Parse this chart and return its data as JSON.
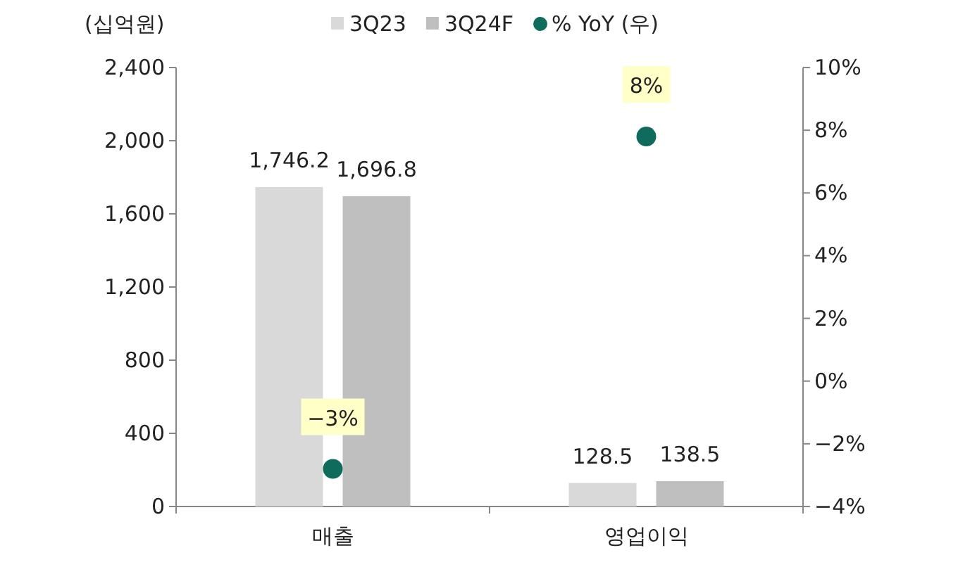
{
  "chart_data": {
    "type": "bar",
    "ylabel": "(십억원)",
    "categories": [
      "매출",
      "영업이익"
    ],
    "series": [
      {
        "name": "3Q23",
        "color": "#d9d9d9",
        "values": [
          1746.2,
          128.5
        ],
        "value_labels": [
          "1,746.2",
          "128.5"
        ]
      },
      {
        "name": "3Q24F",
        "color": "#bfbfbf",
        "values": [
          1696.8,
          138.5
        ],
        "value_labels": [
          "1,696.8",
          "138.5"
        ]
      },
      {
        "name": "% YoY (우)",
        "type": "scatter",
        "axis": "y2",
        "color": "#0f6b5c",
        "marker": "circle",
        "values": [
          -2.8,
          7.8
        ],
        "value_labels": [
          "−3%",
          "8%"
        ]
      }
    ],
    "ylim": [
      0,
      2400
    ],
    "yticks": [
      0,
      400,
      800,
      {
        "value": 1200,
        "label": "1,200"
      },
      {
        "value": 1600,
        "label": "1,600"
      },
      {
        "value": 2000,
        "label": "2,000"
      },
      {
        "value": 2400,
        "label": "2,400"
      }
    ],
    "y2lim": [
      -4,
      10
    ],
    "y2ticks": [
      {
        "value": -4,
        "label": "−4%"
      },
      {
        "value": -2,
        "label": "−2%"
      },
      {
        "value": 0,
        "label": "0%"
      },
      {
        "value": 2,
        "label": "2%"
      },
      {
        "value": 4,
        "label": "4%"
      },
      {
        "value": 6,
        "label": "6%"
      },
      {
        "value": 8,
        "label": "8%"
      },
      {
        "value": 10,
        "label": "10%"
      }
    ],
    "legend": "top",
    "grid": false
  }
}
